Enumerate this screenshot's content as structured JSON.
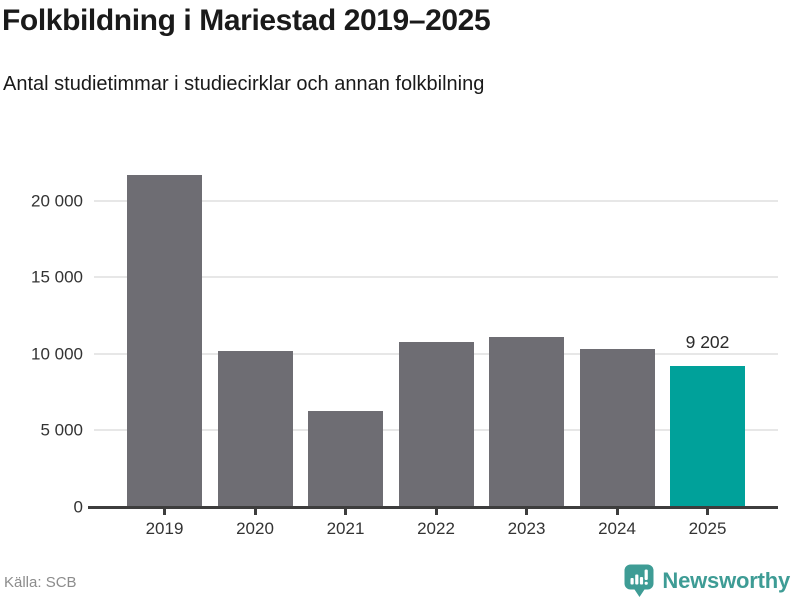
{
  "chart_data": {
    "type": "bar",
    "title": "Folkbildning i Mariestad 2019–2025",
    "subtitle": "Antal studietimmar i studiecirklar och annan folkbilning",
    "categories": [
      "2019",
      "2020",
      "2021",
      "2022",
      "2023",
      "2024",
      "2025"
    ],
    "values": [
      21700,
      10200,
      6250,
      10800,
      11100,
      10300,
      9202
    ],
    "highlight_index": 6,
    "highlight_value_label": "9 202",
    "ylim": [
      0,
      22000
    ],
    "y_ticks": [
      {
        "value": 0,
        "label": "0"
      },
      {
        "value": 5000,
        "label": "5 000"
      },
      {
        "value": 10000,
        "label": "10 000"
      },
      {
        "value": 15000,
        "label": "15 000"
      },
      {
        "value": 20000,
        "label": "20 000"
      }
    ],
    "grid": true,
    "legend": "none",
    "colors": {
      "bar": "#6e6d73",
      "highlight": "#00a19a",
      "axis": "#3d3d3d",
      "gridline": "#e7e7e7",
      "tick_text": "#333333"
    },
    "source": "Källa: SCB"
  },
  "branding": {
    "logo_text": "Newsworthy",
    "logo_color": "#3e9c95",
    "logo_icon": "newsworthy-speech-bubble-bar-chart-icon"
  }
}
